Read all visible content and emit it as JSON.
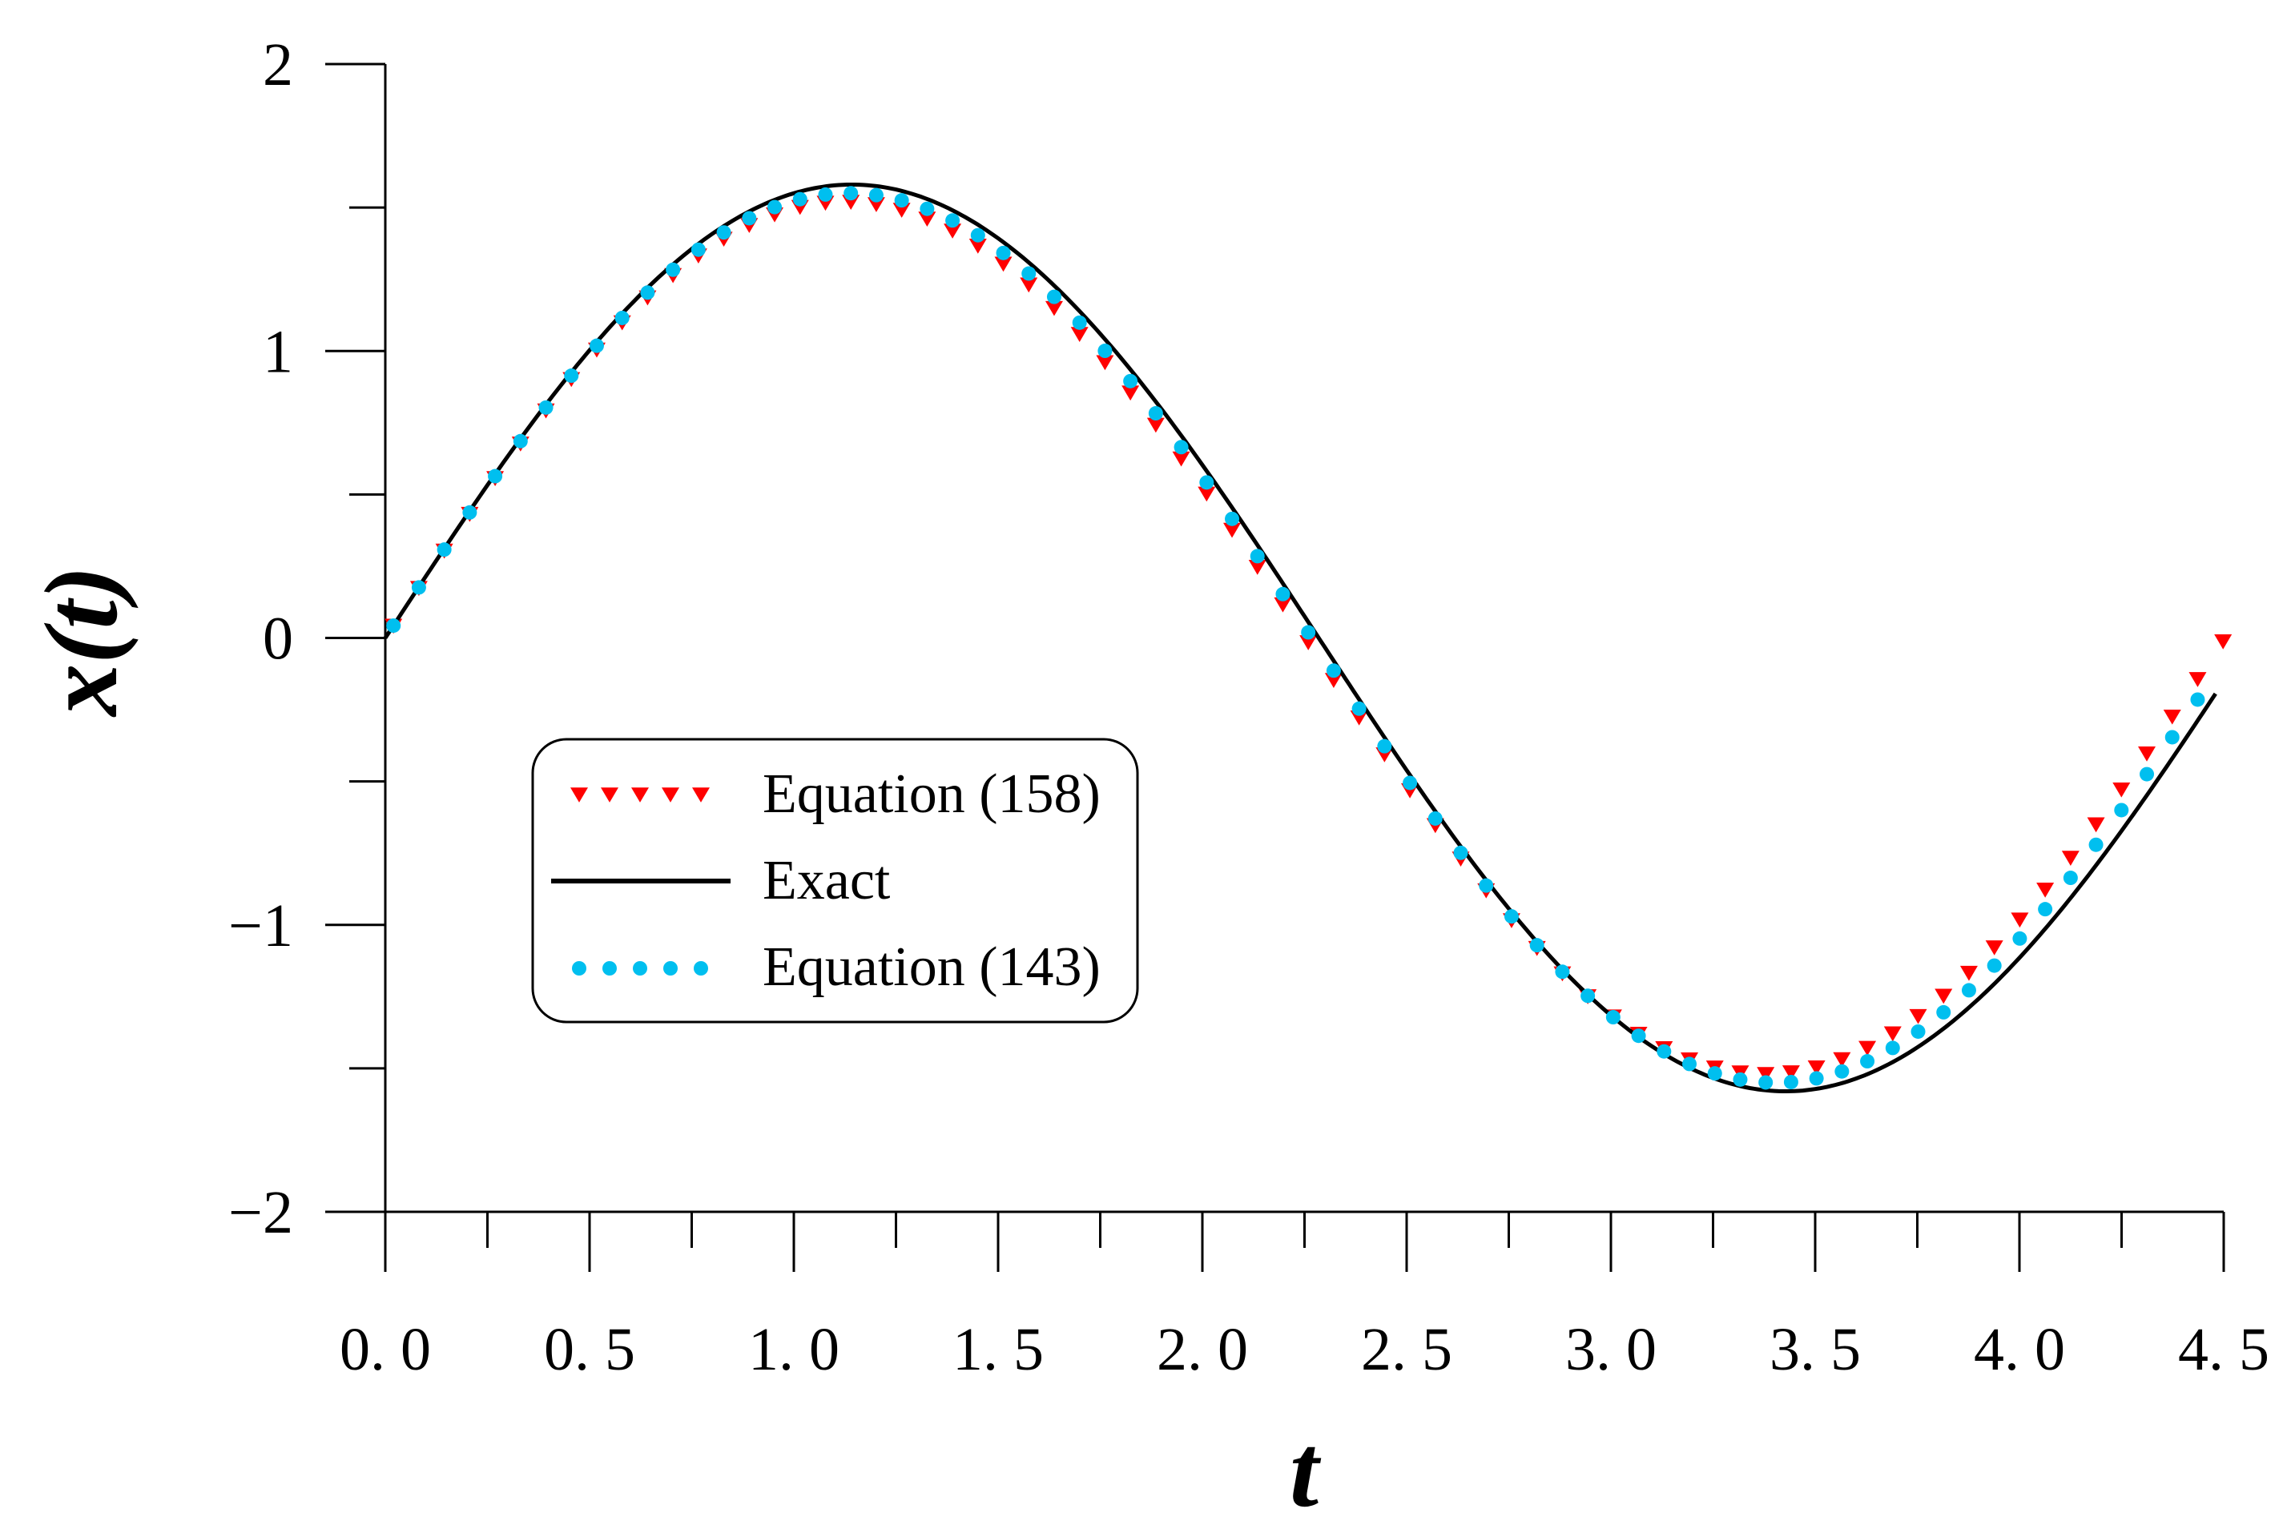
{
  "chart_data": {
    "type": "line",
    "title": "",
    "xlabel": "t",
    "ylabel": "x(t)",
    "xlim": [
      0,
      4.5
    ],
    "ylim": [
      -2,
      2
    ],
    "xticks": [
      0,
      0.5,
      1,
      1.5,
      2,
      2.5,
      3,
      3.5,
      4,
      4.5
    ],
    "xtick_labels": [
      "0. 0",
      "0. 5",
      "1. 0",
      "1. 5",
      "2. 0",
      "2. 5",
      "3. 0",
      "3. 5",
      "4. 0",
      "4. 5"
    ],
    "yticks": [
      -2,
      -1,
      0,
      1,
      2
    ],
    "ytick_labels": [
      "−2",
      "−1",
      "0",
      "1",
      "2"
    ],
    "grid": false,
    "legend_position": "lower-left",
    "series": [
      {
        "name": "Equation (158)",
        "style": "markers",
        "marker": "triangle-down",
        "color": "#ff0000",
        "amplitude": 1.52,
        "omega": 1.395,
        "t_start": 0.02,
        "t_end": 4.5,
        "t_step": 0.0622,
        "x": [
          0,
          0.5,
          1.0,
          1.125,
          1.5,
          2.0,
          2.25,
          2.5,
          3.0,
          3.375,
          3.5,
          4.0,
          4.5
        ],
        "y": [
          0,
          0.98,
          1.49,
          1.52,
          1.31,
          0.49,
          0.0,
          -0.49,
          -1.31,
          -1.52,
          -1.49,
          -0.98,
          0.0
        ]
      },
      {
        "name": "Exact",
        "style": "line",
        "color": "#000000",
        "amplitude": 1.58,
        "omega": 1.375,
        "t_start": 0.0,
        "t_end": 4.48,
        "t_step": 0.01,
        "x": [
          0,
          0.5,
          1.0,
          1.14,
          1.5,
          2.0,
          2.28,
          2.5,
          3.0,
          3.43,
          3.5,
          4.0,
          4.48
        ],
        "y": [
          0,
          1.03,
          1.55,
          1.58,
          1.39,
          0.57,
          0.0,
          -0.44,
          -1.31,
          -1.58,
          -1.57,
          -1.12,
          -0.01
        ]
      },
      {
        "name": "Equation (143)",
        "style": "markers",
        "marker": "circle",
        "color": "#00bfef",
        "amplitude": 1.55,
        "omega": 1.385,
        "t_start": 0.02,
        "t_end": 4.48,
        "t_step": 0.0622,
        "x": [
          0,
          0.5,
          1.0,
          1.134,
          1.5,
          2.0,
          2.268,
          2.5,
          3.0,
          3.402,
          3.5,
          4.0,
          4.48
        ],
        "y": [
          0,
          0.99,
          1.52,
          1.55,
          1.35,
          0.53,
          0.0,
          -0.47,
          -1.31,
          -1.55,
          -1.53,
          -1.05,
          0.0
        ]
      }
    ]
  }
}
